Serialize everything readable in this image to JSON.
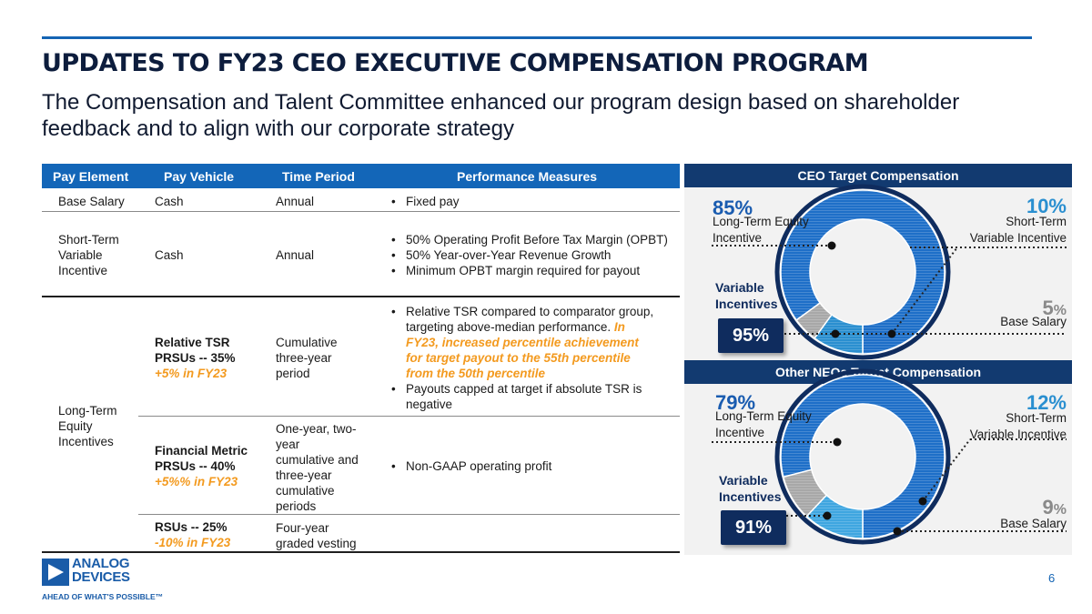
{
  "header": {
    "title": "UPDATES TO FY23 CEO EXECUTIVE COMPENSATION PROGRAM",
    "subtitle": "The Compensation and Talent Committee enhanced our program design based on shareholder feedback and to align with our corporate strategy"
  },
  "table": {
    "columns": [
      "Pay Element",
      "Pay Vehicle",
      "Time Period",
      "Performance Measures"
    ],
    "base_salary": {
      "element": "Base Salary",
      "vehicle": "Cash",
      "period": "Annual",
      "measures": [
        "Fixed pay"
      ]
    },
    "stvi": {
      "element_lines": [
        "Short-Term",
        "Variable",
        "Incentive"
      ],
      "vehicle": "Cash",
      "period": "Annual",
      "measures": [
        "50% Operating Profit Before Tax Margin (OPBT)",
        "50% Year-over-Year Revenue Growth",
        "Minimum OPBT margin required for payout"
      ]
    },
    "ltei": {
      "element_lines": [
        "Long-Term",
        "Equity",
        "Incentives"
      ],
      "rel_tsr": {
        "vehicle_lines": [
          "Relative TSR",
          "PRSUs -- 35%"
        ],
        "change": "+5% in FY23",
        "period_lines": [
          "Cumulative",
          "three-year",
          "period"
        ],
        "measure_1a": "Relative TSR compared to comparator group,",
        "measure_1b": "targeting above-median performance.",
        "measure_1c": "In",
        "measure_1_highlight": [
          "FY23, increased percentile achievement",
          "for target payout to the 55th percentile",
          "from the 50th percentile"
        ],
        "measure_2a": "Payouts capped at target if absolute TSR is",
        "measure_2b": "negative"
      },
      "fin_metric": {
        "vehicle_lines": [
          "Financial Metric",
          "PRSUs -- 40%"
        ],
        "change": "+5%% in FY23",
        "period_lines": [
          "One-year, two-",
          "year",
          "cumulative and",
          "three-year",
          "cumulative",
          "periods"
        ],
        "measure": "Non-GAAP operating profit"
      },
      "rsus": {
        "vehicle": "RSUs -- 25%",
        "change": "-10% in FY23",
        "period_lines": [
          "Four-year",
          "graded vesting"
        ]
      }
    }
  },
  "ceo_panel": {
    "title": "CEO Target Compensation",
    "lte_pct": "85%",
    "lte_label_lines": [
      "Long-Term Equity",
      "Incentive"
    ],
    "stvi_pct": "10%",
    "stvi_label_lines": [
      "Short-Term",
      "Variable Incentive"
    ],
    "base_pct_num": "5",
    "base_pct_sym": "%",
    "base_label": "Base Salary",
    "variable_label_lines": [
      "Variable",
      "Incentives"
    ],
    "variable_pct": "95%",
    "donut": [
      {
        "name": "Long-Term Equity Incentive",
        "value": 85,
        "color": "#1e6fc8"
      },
      {
        "name": "Short-Term Variable Incentive",
        "value": 10,
        "color": "#2a8fd0"
      },
      {
        "name": "Base Salary",
        "value": 5,
        "color": "#a8a8a8"
      }
    ]
  },
  "neo_panel": {
    "title": "Other NEOs Target Compensation",
    "lte_pct": "79%",
    "lte_label_lines": [
      "Long-Term Equity",
      "Incentive"
    ],
    "stvi_pct": "12%",
    "stvi_label_lines": [
      "Short-Term",
      "Variable Incentive"
    ],
    "base_pct_num": "9",
    "base_pct_sym": "%",
    "base_label": "Base Salary",
    "variable_label_lines": [
      "Variable",
      "Incentives"
    ],
    "variable_pct": "91%",
    "donut": [
      {
        "name": "Long-Term Equity Incentive",
        "value": 79,
        "color": "#1e6fc8"
      },
      {
        "name": "Short-Term Variable Incentive",
        "value": 12,
        "color": "#3fa6e0"
      },
      {
        "name": "Base Salary",
        "value": 9,
        "color": "#a8a8a8"
      }
    ]
  },
  "footer": {
    "logo_line1": "ANALOG",
    "logo_line2": "DEVICES",
    "tagline": "AHEAD OF WHAT'S POSSIBLE™",
    "page_number": "6"
  },
  "colors": {
    "accent_blue": "#1366b8",
    "navy": "#123a70",
    "orange": "#f39a1f"
  }
}
